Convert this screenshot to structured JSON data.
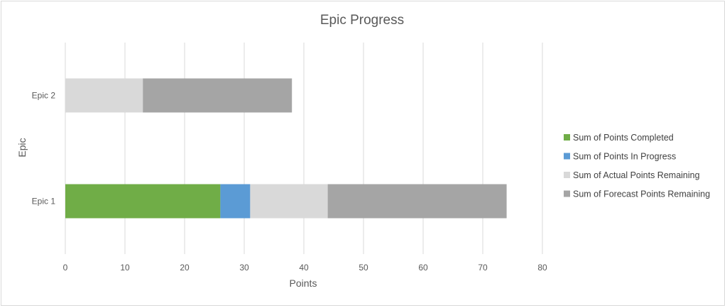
{
  "chart_data": {
    "type": "bar",
    "orientation": "horizontal",
    "stacked": true,
    "title": "Epic Progress",
    "xlabel": "Points",
    "ylabel": "Epic",
    "xlim": [
      0,
      80
    ],
    "xticks": [
      0,
      10,
      20,
      30,
      40,
      50,
      60,
      70,
      80
    ],
    "grid": true,
    "legend_position": "right",
    "categories": [
      "Epic 1",
      "Epic 2"
    ],
    "series": [
      {
        "name": "Sum of Points Completed",
        "color": "#70ad47",
        "values": [
          26,
          0
        ]
      },
      {
        "name": "Sum of Points In Progress",
        "color": "#5b9bd5",
        "values": [
          5,
          0
        ]
      },
      {
        "name": "Sum of Actual Points Remaining",
        "color": "#d9d9d9",
        "values": [
          13,
          13
        ]
      },
      {
        "name": "Sum of Forecast Points Remaining",
        "color": "#a5a5a5",
        "values": [
          30,
          25
        ]
      }
    ]
  }
}
